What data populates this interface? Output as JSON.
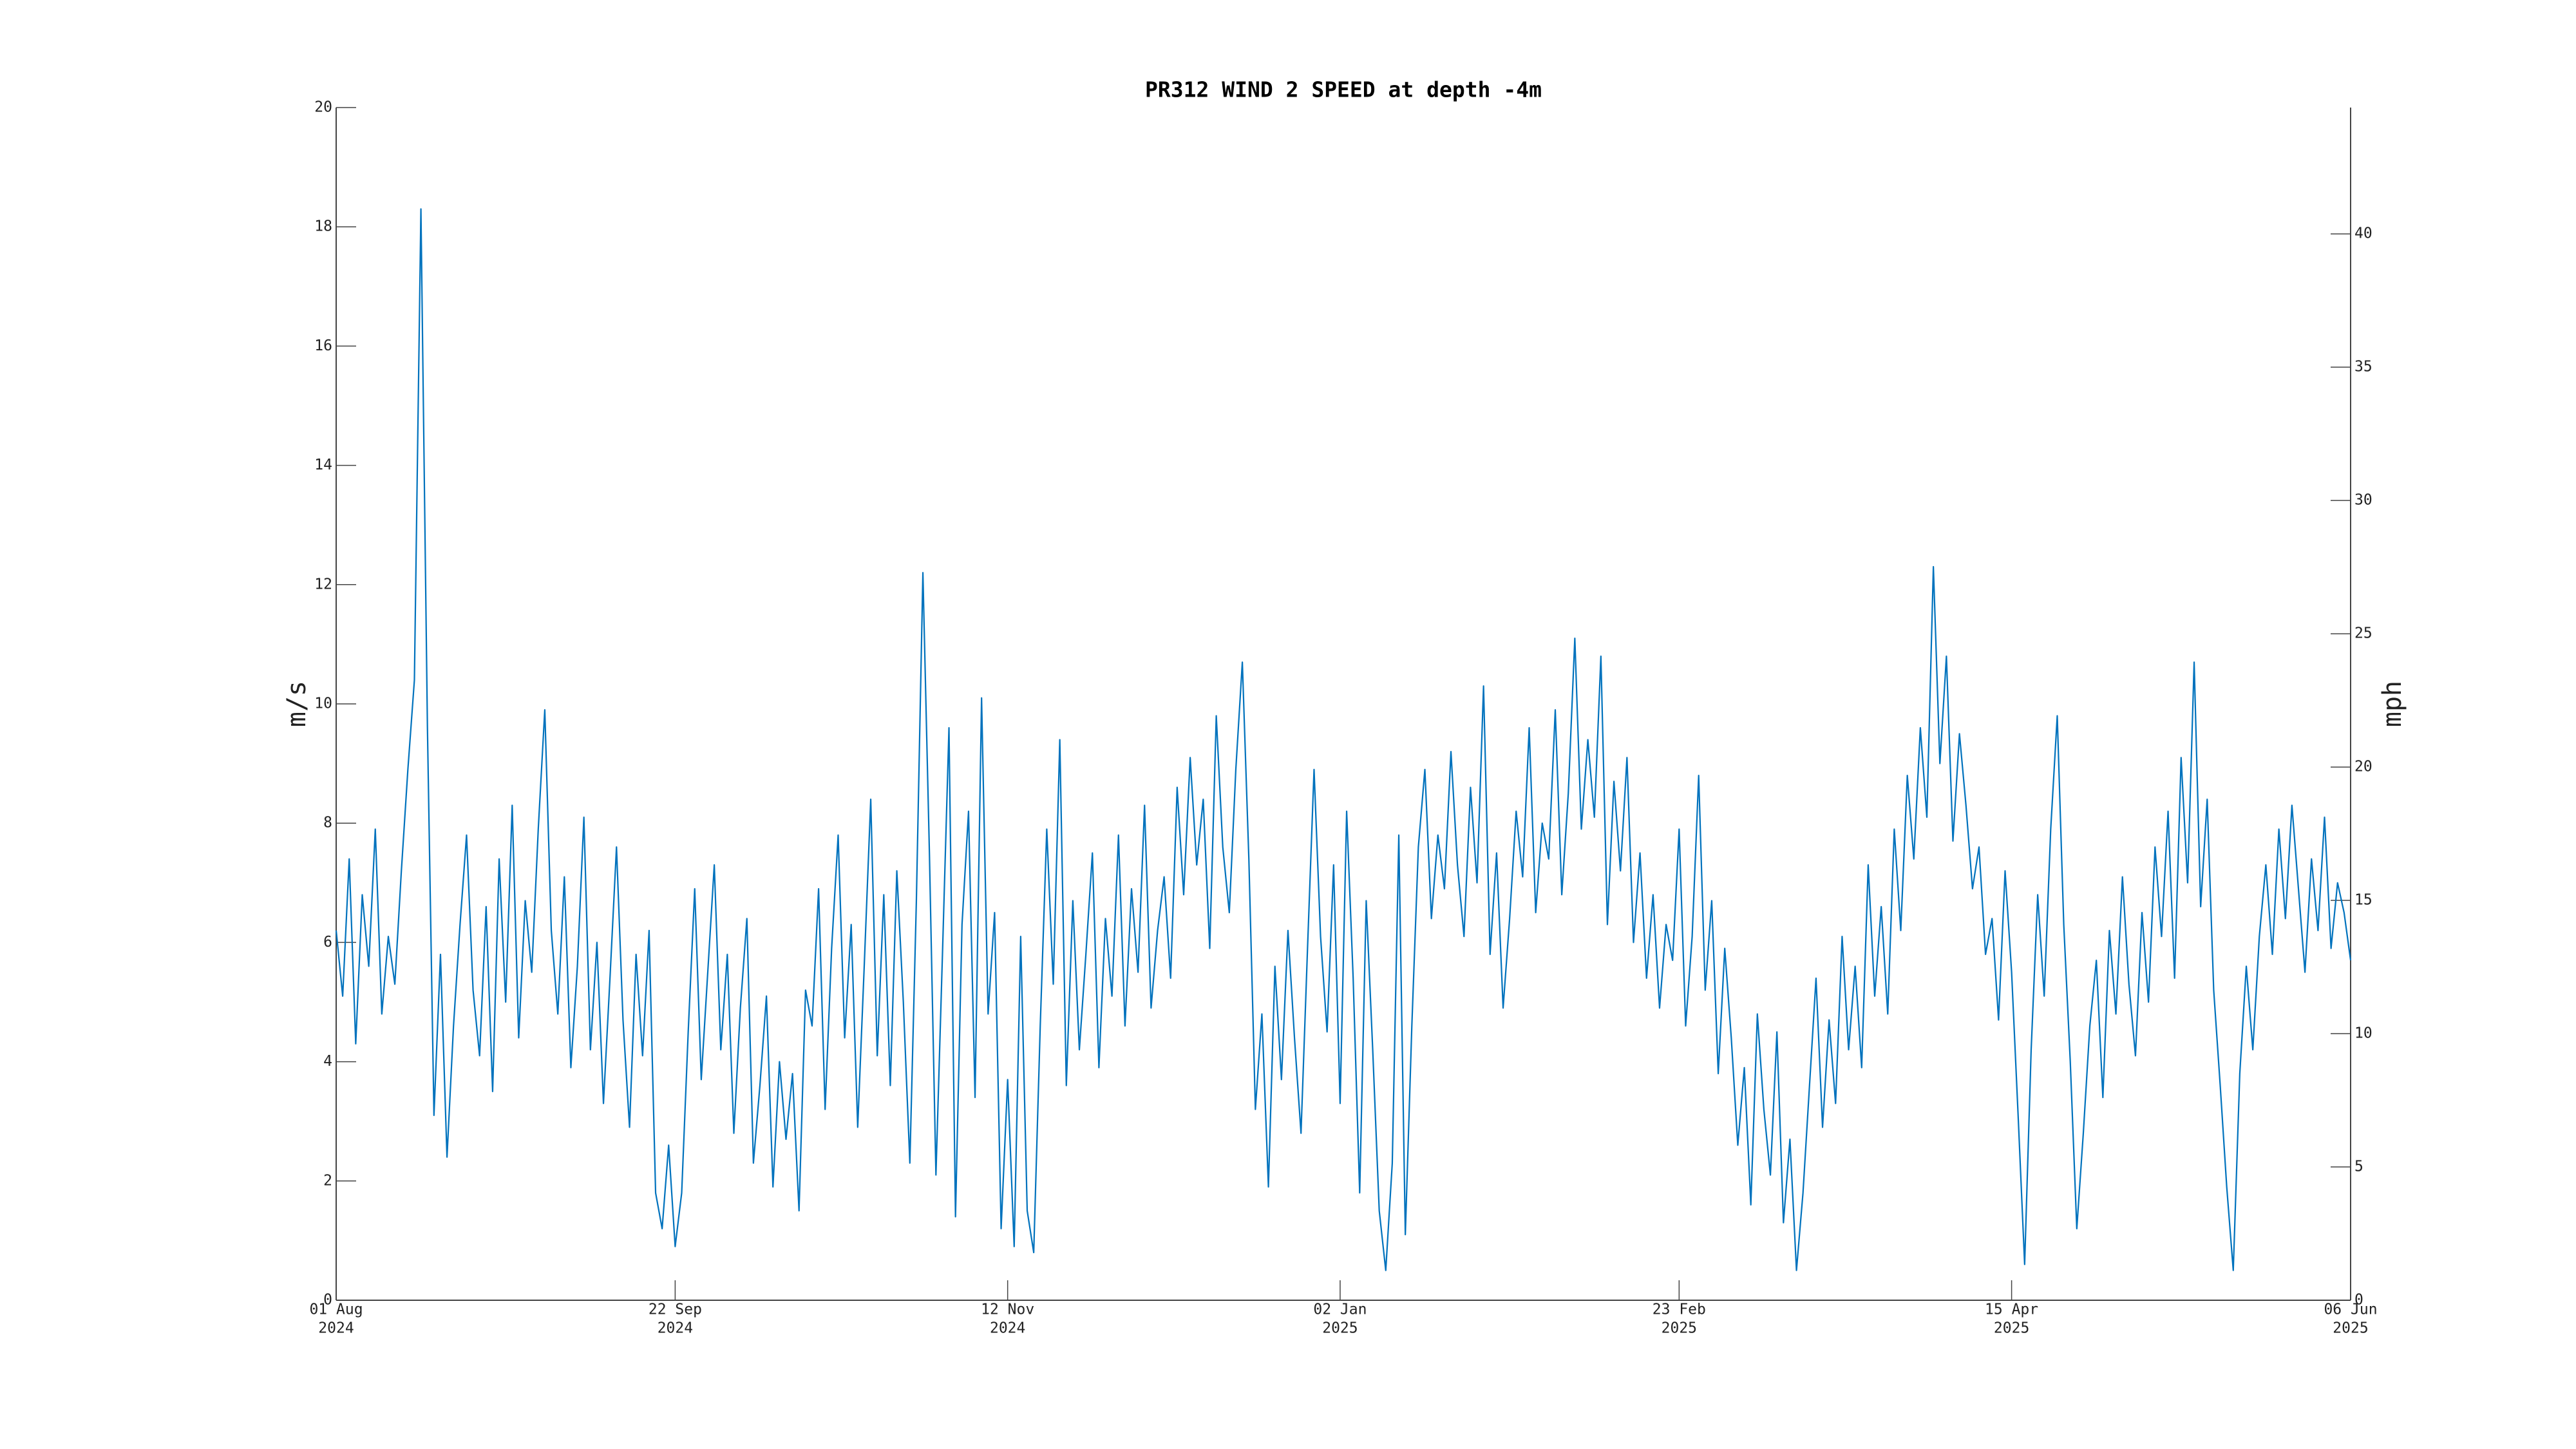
{
  "chart_data": {
    "type": "line",
    "title": "PR312 WIND 2 SPEED at depth -4m",
    "ylabel": "m/s",
    "y2label": "mph",
    "xlim": [
      "2024-08-01",
      "2025-06-06"
    ],
    "xticks": [
      {
        "value": "2024-08-01",
        "label": [
          "01 Aug",
          "2024"
        ]
      },
      {
        "value": "2024-09-22",
        "label": [
          "22 Sep",
          "2024"
        ]
      },
      {
        "value": "2024-11-12",
        "label": [
          "12 Nov",
          "2024"
        ]
      },
      {
        "value": "2025-01-02",
        "label": [
          "02 Jan",
          "2025"
        ]
      },
      {
        "value": "2025-02-23",
        "label": [
          "23 Feb",
          "2025"
        ]
      },
      {
        "value": "2025-04-15",
        "label": [
          "15 Apr",
          "2025"
        ]
      },
      {
        "value": "2025-06-06",
        "label": [
          "06 Jun",
          "2025"
        ]
      }
    ],
    "ylim": [
      0,
      20
    ],
    "yticks": [
      0,
      2,
      4,
      6,
      8,
      10,
      12,
      14,
      16,
      18,
      20
    ],
    "y2lim": [
      0,
      44.74
    ],
    "y2ticks": [
      0,
      5,
      10,
      15,
      20,
      25,
      30,
      35,
      40
    ],
    "grid": false,
    "x": [
      "2024-08-01",
      "2024-08-02",
      "2024-08-03",
      "2024-08-04",
      "2024-08-05",
      "2024-08-06",
      "2024-08-07",
      "2024-08-08",
      "2024-08-09",
      "2024-08-10",
      "2024-08-11",
      "2024-08-12",
      "2024-08-13",
      "2024-08-14",
      "2024-08-15",
      "2024-08-16",
      "2024-08-17",
      "2024-08-18",
      "2024-08-19",
      "2024-08-20",
      "2024-08-21",
      "2024-08-22",
      "2024-08-23",
      "2024-08-24",
      "2024-08-25",
      "2024-08-26",
      "2024-08-27",
      "2024-08-28",
      "2024-08-29",
      "2024-08-30",
      "2024-08-31",
      "2024-09-01",
      "2024-09-02",
      "2024-09-03",
      "2024-09-04",
      "2024-09-05",
      "2024-09-06",
      "2024-09-07",
      "2024-09-08",
      "2024-09-09",
      "2024-09-10",
      "2024-09-11",
      "2024-09-12",
      "2024-09-13",
      "2024-09-14",
      "2024-09-15",
      "2024-09-16",
      "2024-09-17",
      "2024-09-18",
      "2024-09-19",
      "2024-09-20",
      "2024-09-21",
      "2024-09-22",
      "2024-09-23",
      "2024-09-24",
      "2024-09-25",
      "2024-09-26",
      "2024-09-27",
      "2024-09-28",
      "2024-09-29",
      "2024-09-30",
      "2024-10-01",
      "2024-10-02",
      "2024-10-03",
      "2024-10-04",
      "2024-10-05",
      "2024-10-06",
      "2024-10-07",
      "2024-10-08",
      "2024-10-09",
      "2024-10-10",
      "2024-10-11",
      "2024-10-12",
      "2024-10-13",
      "2024-10-14",
      "2024-10-15",
      "2024-10-16",
      "2024-10-17",
      "2024-10-18",
      "2024-10-19",
      "2024-10-20",
      "2024-10-21",
      "2024-10-22",
      "2024-10-23",
      "2024-10-24",
      "2024-10-25",
      "2024-10-26",
      "2024-10-27",
      "2024-10-28",
      "2024-10-29",
      "2024-10-30",
      "2024-10-31",
      "2024-11-01",
      "2024-11-02",
      "2024-11-03",
      "2024-11-04",
      "2024-11-05",
      "2024-11-06",
      "2024-11-07",
      "2024-11-08",
      "2024-11-09",
      "2024-11-10",
      "2024-11-11",
      "2024-11-12",
      "2024-11-13",
      "2024-11-14",
      "2024-11-15",
      "2024-11-16",
      "2024-11-17",
      "2024-11-18",
      "2024-11-19",
      "2024-11-20",
      "2024-11-21",
      "2024-11-22",
      "2024-11-23",
      "2024-11-24",
      "2024-11-25",
      "2024-11-26",
      "2024-11-27",
      "2024-11-28",
      "2024-11-29",
      "2024-11-30",
      "2024-12-01",
      "2024-12-02",
      "2024-12-03",
      "2024-12-04",
      "2024-12-05",
      "2024-12-06",
      "2024-12-07",
      "2024-12-08",
      "2024-12-09",
      "2024-12-10",
      "2024-12-11",
      "2024-12-12",
      "2024-12-13",
      "2024-12-14",
      "2024-12-15",
      "2024-12-16",
      "2024-12-17",
      "2024-12-18",
      "2024-12-19",
      "2024-12-20",
      "2024-12-21",
      "2024-12-22",
      "2024-12-23",
      "2024-12-24",
      "2024-12-25",
      "2024-12-26",
      "2024-12-27",
      "2024-12-28",
      "2024-12-29",
      "2024-12-30",
      "2024-12-31",
      "2025-01-01",
      "2025-01-02",
      "2025-01-03",
      "2025-01-04",
      "2025-01-05",
      "2025-01-06",
      "2025-01-07",
      "2025-01-08",
      "2025-01-09",
      "2025-01-10",
      "2025-01-11",
      "2025-01-12",
      "2025-01-13",
      "2025-01-14",
      "2025-01-15",
      "2025-01-16",
      "2025-01-17",
      "2025-01-18",
      "2025-01-19",
      "2025-01-20",
      "2025-01-21",
      "2025-01-22",
      "2025-01-23",
      "2025-01-24",
      "2025-01-25",
      "2025-01-26",
      "2025-01-27",
      "2025-01-28",
      "2025-01-29",
      "2025-01-30",
      "2025-01-31",
      "2025-02-01",
      "2025-02-02",
      "2025-02-03",
      "2025-02-04",
      "2025-02-05",
      "2025-02-06",
      "2025-02-07",
      "2025-02-08",
      "2025-02-09",
      "2025-02-10",
      "2025-02-11",
      "2025-02-12",
      "2025-02-13",
      "2025-02-14",
      "2025-02-15",
      "2025-02-16",
      "2025-02-17",
      "2025-02-18",
      "2025-02-19",
      "2025-02-20",
      "2025-02-21",
      "2025-02-22",
      "2025-02-23",
      "2025-02-24",
      "2025-02-25",
      "2025-02-26",
      "2025-02-27",
      "2025-02-28",
      "2025-03-01",
      "2025-03-02",
      "2025-03-03",
      "2025-03-04",
      "2025-03-05",
      "2025-03-06",
      "2025-03-07",
      "2025-03-08",
      "2025-03-09",
      "2025-03-10",
      "2025-03-11",
      "2025-03-12",
      "2025-03-13",
      "2025-03-14",
      "2025-03-15",
      "2025-03-16",
      "2025-03-17",
      "2025-03-18",
      "2025-03-19",
      "2025-03-20",
      "2025-03-21",
      "2025-03-22",
      "2025-03-23",
      "2025-03-24",
      "2025-03-25",
      "2025-03-26",
      "2025-03-27",
      "2025-03-28",
      "2025-03-29",
      "2025-03-30",
      "2025-03-31",
      "2025-04-01",
      "2025-04-02",
      "2025-04-03",
      "2025-04-04",
      "2025-04-05",
      "2025-04-06",
      "2025-04-07",
      "2025-04-08",
      "2025-04-09",
      "2025-04-10",
      "2025-04-11",
      "2025-04-12",
      "2025-04-13",
      "2025-04-14",
      "2025-04-15",
      "2025-04-16",
      "2025-04-17",
      "2025-04-18",
      "2025-04-19",
      "2025-04-20",
      "2025-04-21",
      "2025-04-22",
      "2025-04-23",
      "2025-04-24",
      "2025-04-25",
      "2025-04-26",
      "2025-04-27",
      "2025-04-28",
      "2025-04-29",
      "2025-04-30",
      "2025-05-01",
      "2025-05-02",
      "2025-05-03",
      "2025-05-04",
      "2025-05-05",
      "2025-05-06",
      "2025-05-07",
      "2025-05-08",
      "2025-05-09",
      "2025-05-10",
      "2025-05-11",
      "2025-05-12",
      "2025-05-13",
      "2025-05-14",
      "2025-05-15",
      "2025-05-16",
      "2025-05-17",
      "2025-05-18",
      "2025-05-19",
      "2025-05-20",
      "2025-05-21",
      "2025-05-22",
      "2025-05-23",
      "2025-05-24",
      "2025-05-25",
      "2025-05-26",
      "2025-05-27",
      "2025-05-28",
      "2025-05-29",
      "2025-05-30",
      "2025-05-31",
      "2025-06-01",
      "2025-06-02",
      "2025-06-03",
      "2025-06-04",
      "2025-06-05",
      "2025-06-06"
    ],
    "series": [
      {
        "name": "WIND 2 SPEED",
        "color": "#0072bd",
        "values": [
          6.2,
          5.1,
          7.4,
          4.3,
          6.8,
          5.6,
          7.9,
          4.8,
          6.1,
          5.3,
          7.2,
          8.9,
          10.4,
          18.3,
          9.6,
          3.1,
          5.8,
          2.4,
          4.6,
          6.3,
          7.8,
          5.2,
          4.1,
          6.6,
          3.5,
          7.4,
          5.0,
          8.3,
          4.4,
          6.7,
          5.5,
          7.9,
          9.9,
          6.2,
          4.8,
          7.1,
          3.9,
          5.6,
          8.1,
          4.2,
          6.0,
          3.3,
          5.4,
          7.6,
          4.7,
          2.9,
          5.8,
          4.1,
          6.2,
          1.8,
          1.2,
          2.6,
          0.9,
          1.8,
          4.5,
          6.9,
          3.7,
          5.5,
          7.3,
          4.2,
          5.8,
          2.8,
          4.9,
          6.4,
          2.3,
          3.6,
          5.1,
          1.9,
          4.0,
          2.7,
          3.8,
          1.5,
          5.2,
          4.6,
          6.9,
          3.2,
          5.9,
          7.8,
          4.4,
          6.3,
          2.9,
          5.6,
          8.4,
          4.1,
          6.8,
          3.6,
          7.2,
          5.0,
          2.3,
          6.7,
          12.2,
          7.5,
          2.1,
          5.8,
          9.6,
          1.4,
          6.3,
          8.2,
          3.4,
          10.1,
          4.8,
          6.5,
          1.2,
          3.7,
          0.9,
          6.1,
          1.5,
          0.8,
          4.6,
          7.9,
          5.3,
          9.4,
          3.6,
          6.7,
          4.2,
          5.8,
          7.5,
          3.9,
          6.4,
          5.1,
          7.8,
          4.6,
          6.9,
          5.5,
          8.3,
          4.9,
          6.2,
          7.1,
          5.4,
          8.6,
          6.8,
          9.1,
          7.3,
          8.4,
          5.9,
          9.8,
          7.6,
          6.5,
          8.9,
          10.7,
          7.4,
          3.2,
          4.8,
          1.9,
          5.6,
          3.7,
          6.2,
          4.4,
          2.8,
          5.9,
          8.9,
          6.1,
          4.5,
          7.3,
          3.3,
          8.2,
          5.4,
          1.8,
          6.7,
          4.2,
          1.5,
          0.5,
          2.3,
          7.8,
          1.1,
          4.6,
          7.6,
          8.9,
          6.4,
          7.8,
          6.9,
          9.2,
          7.3,
          6.1,
          8.6,
          7.0,
          10.3,
          5.8,
          7.5,
          4.9,
          6.4,
          8.2,
          7.1,
          9.6,
          6.5,
          8.0,
          7.4,
          9.9,
          6.8,
          8.5,
          11.1,
          7.9,
          9.4,
          8.1,
          10.8,
          6.3,
          8.7,
          7.2,
          9.1,
          6.0,
          7.5,
          5.4,
          6.8,
          4.9,
          6.3,
          5.7,
          7.9,
          4.6,
          6.1,
          8.8,
          5.2,
          6.7,
          3.8,
          5.9,
          4.4,
          2.6,
          3.9,
          1.6,
          4.8,
          3.2,
          2.1,
          4.5,
          1.3,
          2.7,
          0.5,
          1.8,
          3.6,
          5.4,
          2.9,
          4.7,
          3.3,
          6.1,
          4.2,
          5.6,
          3.9,
          7.3,
          5.1,
          6.6,
          4.8,
          7.9,
          6.2,
          8.8,
          7.4,
          9.6,
          8.1,
          12.3,
          9.0,
          10.8,
          7.7,
          9.5,
          8.3,
          6.9,
          7.6,
          5.8,
          6.4,
          4.7,
          7.2,
          5.5,
          3.1,
          0.6,
          4.2,
          6.8,
          5.1,
          7.9,
          9.8,
          6.3,
          4.0,
          1.2,
          2.8,
          4.6,
          5.7,
          3.4,
          6.2,
          4.8,
          7.1,
          5.3,
          4.1,
          6.5,
          5.0,
          7.6,
          6.1,
          8.2,
          5.4,
          9.1,
          7.0,
          10.7,
          6.6,
          8.4,
          5.2,
          3.6,
          1.9,
          0.5,
          3.8,
          5.6,
          4.2,
          6.1,
          7.3,
          5.8,
          7.9,
          6.4,
          8.3,
          6.9,
          5.5,
          7.4,
          6.2,
          8.1,
          5.9,
          7.0,
          6.5,
          5.7
        ]
      }
    ]
  }
}
